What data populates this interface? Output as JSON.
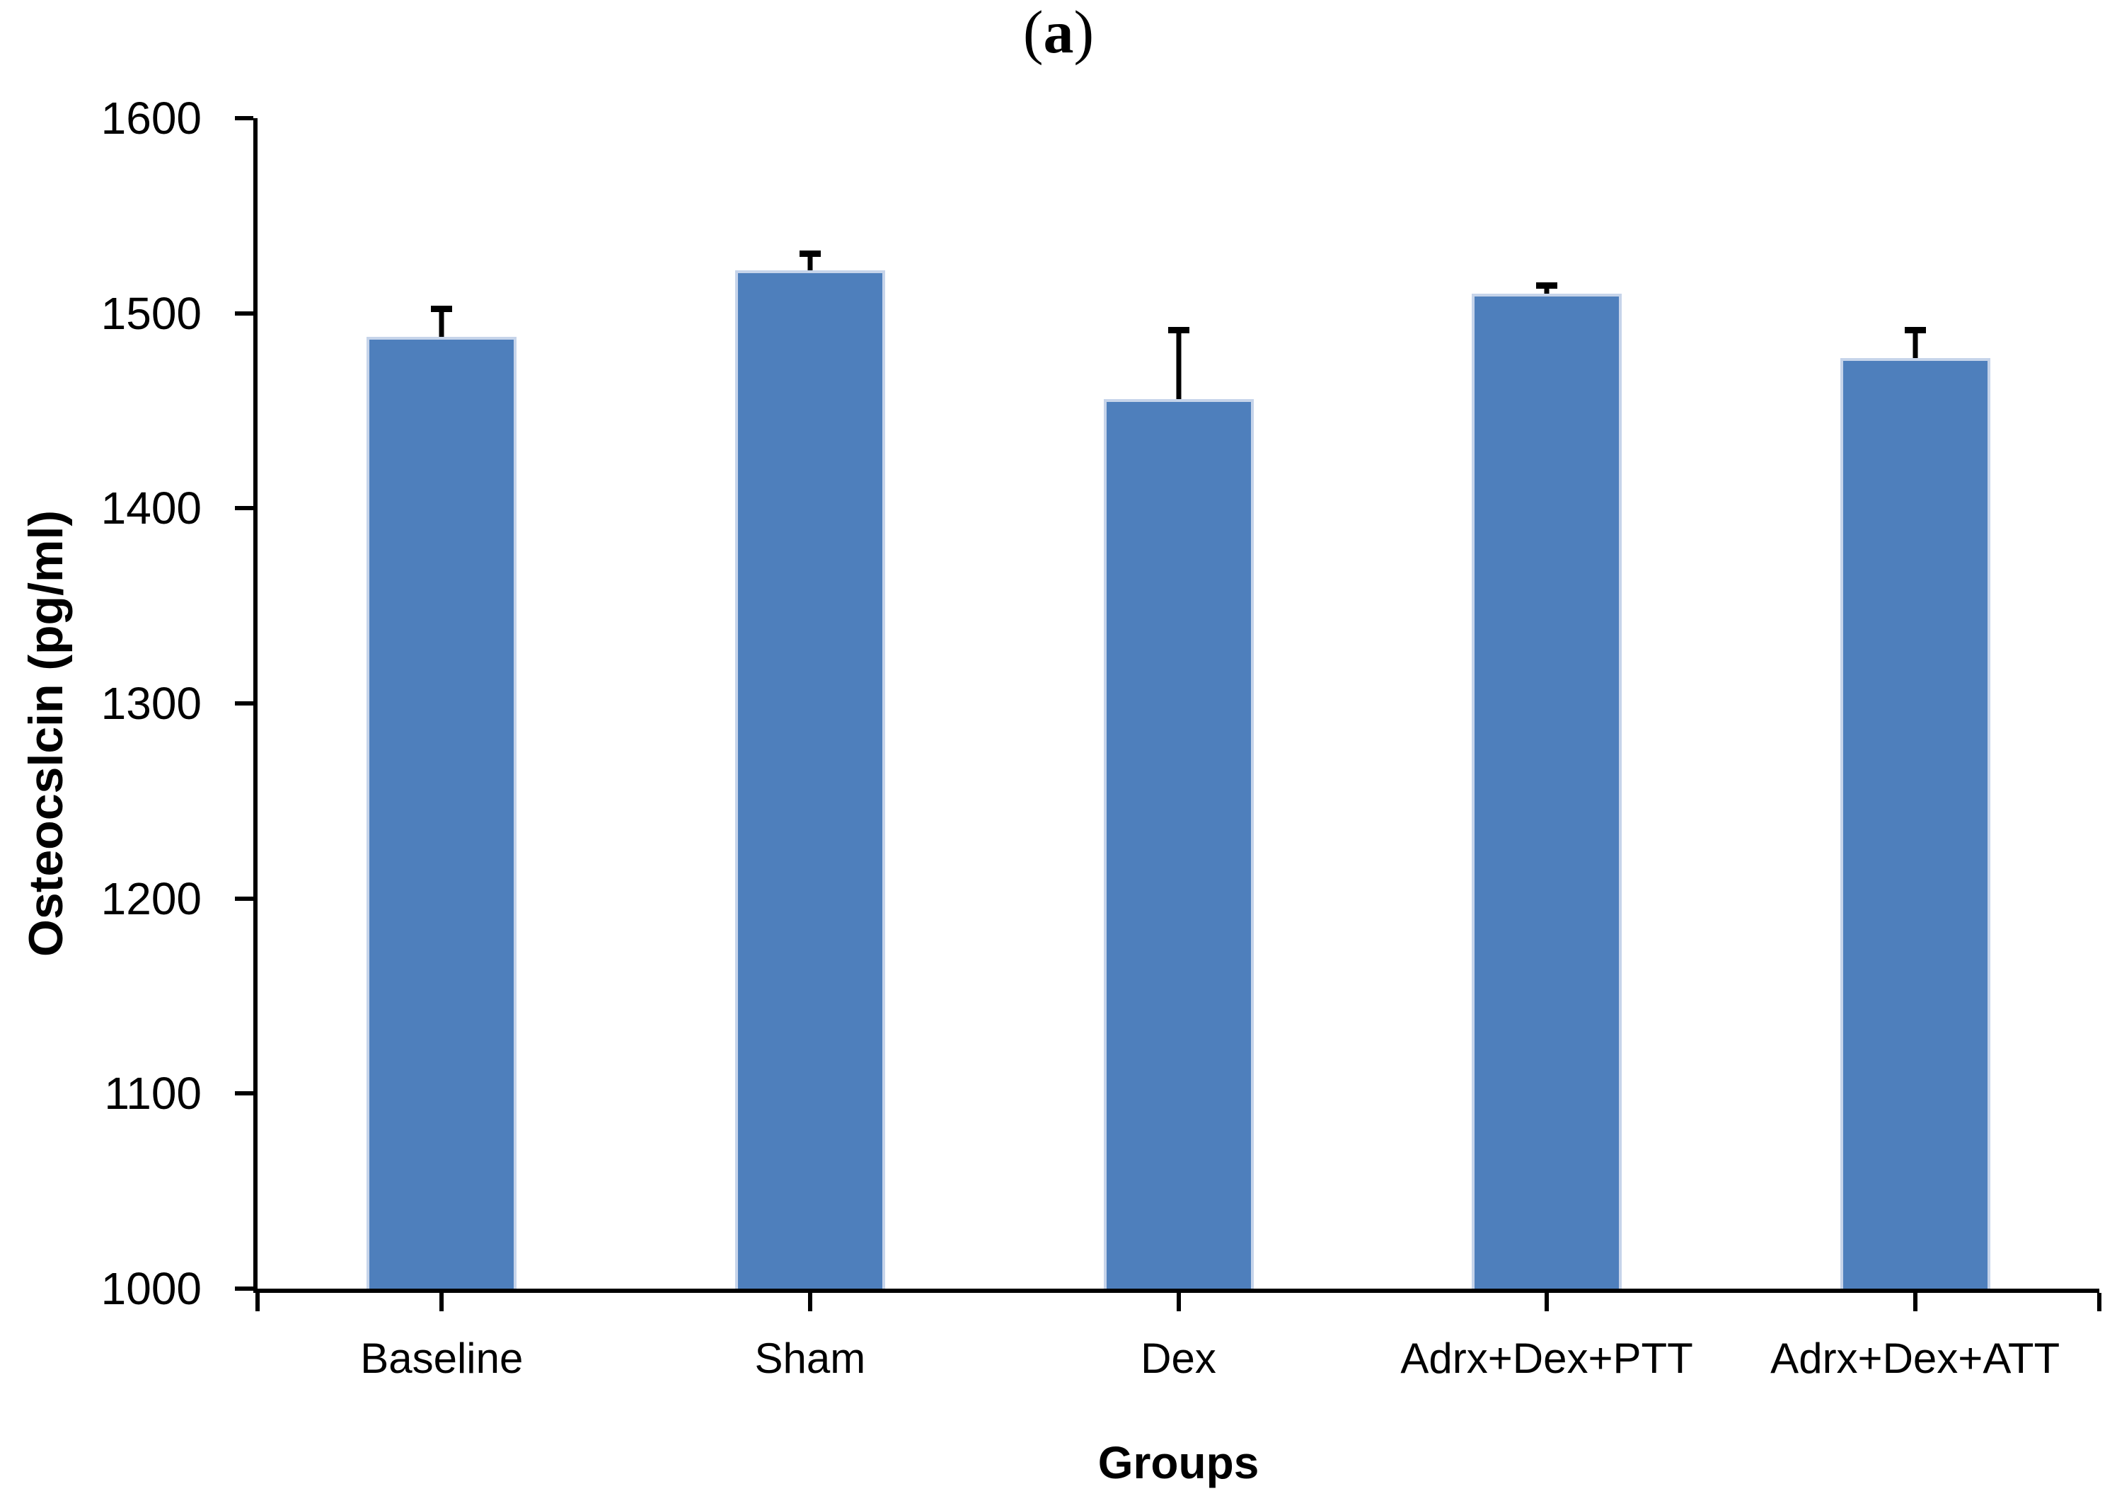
{
  "figure_label": {
    "open": "(",
    "letter": "a",
    "close": ")"
  },
  "chart_data": {
    "type": "bar",
    "title": "(a)",
    "categories": [
      "Baseline",
      "Sham",
      "Dex",
      "Adrx+Dex+PTT",
      "Adrx+Dex+ATT"
    ],
    "values": [
      1488,
      1522,
      1456,
      1510,
      1477
    ],
    "errors_plus": [
      16,
      10,
      37,
      6,
      16
    ],
    "xlabel": "Groups",
    "ylabel": "Osteocslcin (pg/ml)",
    "ylim": [
      1000,
      1600
    ],
    "ytick_step": 100,
    "ytick_labels": [
      "1000",
      "1100",
      "1200",
      "1300",
      "1400",
      "1500",
      "1600"
    ],
    "grid": false,
    "legend": "none",
    "error_bar_direction": "plus-only",
    "colors": {
      "bar_fill": "#4E7FBC",
      "bar_edge": "#C6D4EA",
      "axis": "#000000",
      "text": "#000000",
      "background": "#FFFFFF"
    }
  }
}
